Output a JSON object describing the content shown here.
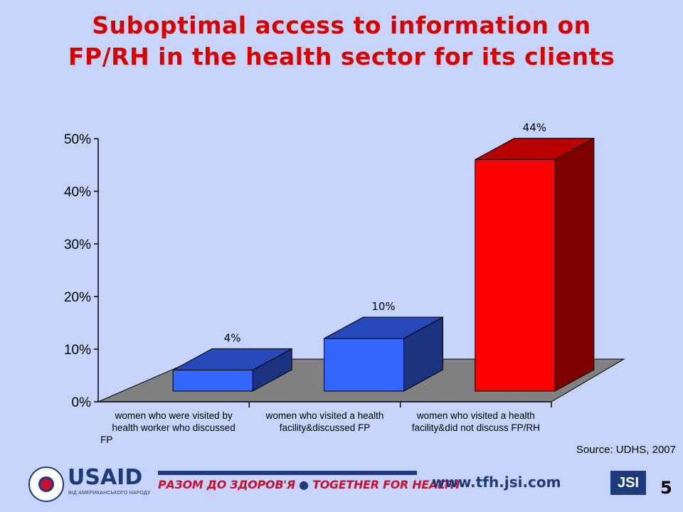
{
  "slide": {
    "title_line1": "Suboptimal access to information on",
    "title_line2": "FP/RH in the health sector for its clients",
    "source": "Source: UDHS, 2007",
    "page_number": "5"
  },
  "footer": {
    "usaid_logo": "USAID",
    "usaid_subtitle": "ВІД АМЕРИКАНСЬКОГО НАРОДУ",
    "tfh_part1": "РАЗОМ ДО ЗДОРОВ'Я",
    "tfh_part2": "TOGETHER FOR HEALTH",
    "url": "www.tfh.jsi.com",
    "jsi_logo": "JSI"
  },
  "colors": {
    "background": "#c6d3fa",
    "title": "#d90000",
    "floor": "#808080",
    "blue_bar": "#3366ff",
    "red_bar": "#ff0000"
  },
  "chart_data": {
    "type": "bar",
    "style": "3d",
    "categories": [
      [
        "women who were visited by",
        "health worker who discussed",
        "FP"
      ],
      [
        "women who visited a health",
        "facility&discussed FP"
      ],
      [
        "women who visited a health",
        "facility&did not discuss FP/RH"
      ]
    ],
    "values": [
      4,
      10,
      44
    ],
    "value_labels": [
      "4%",
      "10%",
      "44%"
    ],
    "bar_colors": [
      "#3366ff",
      "#3366ff",
      "#ff0000"
    ],
    "ylim": [
      0,
      50
    ],
    "yticks": [
      0,
      10,
      20,
      30,
      40,
      50
    ],
    "ytick_labels": [
      "0%",
      "10%",
      "20%",
      "30%",
      "40%",
      "50%"
    ],
    "grid": false,
    "legend": "none"
  }
}
